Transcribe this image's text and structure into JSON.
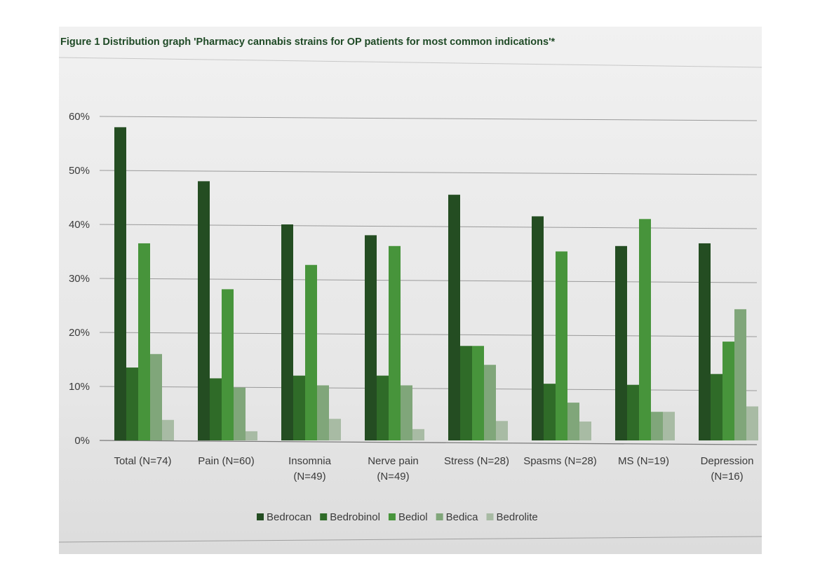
{
  "chart_data": {
    "type": "bar",
    "title": "Figure 1 Distribution graph 'Pharmacy cannabis strains for OP patients for most common indications'*",
    "xlabel": "",
    "ylabel": "",
    "ylim": [
      0,
      60
    ],
    "y_ticks": [
      "0%",
      "10%",
      "20%",
      "30%",
      "40%",
      "50%",
      "60%"
    ],
    "y_tick_values": [
      0,
      10,
      20,
      30,
      40,
      50,
      60
    ],
    "grid": true,
    "legend_position": "bottom",
    "categories": [
      [
        "Total (N=74)"
      ],
      [
        "Pain (N=60)"
      ],
      [
        "Insomnia",
        "(N=49)"
      ],
      [
        "Nerve pain",
        "(N=49)"
      ],
      [
        "Stress (N=28)"
      ],
      [
        "Spasms (N=28)"
      ],
      [
        "MS (N=19)"
      ],
      [
        "Depression",
        "(N=16)"
      ]
    ],
    "series": [
      {
        "name": "Bedrocan",
        "color": "#244d22",
        "values": [
          58,
          48,
          40,
          38,
          45.5,
          41.5,
          36,
          36.5
        ]
      },
      {
        "name": "Bedrobinol",
        "color": "#2f6b28",
        "values": [
          13.5,
          11.5,
          12,
          12,
          17.5,
          10.5,
          10.3,
          12.3
        ]
      },
      {
        "name": "Bediol",
        "color": "#47943b",
        "values": [
          36.5,
          28,
          32.5,
          36,
          17.5,
          35,
          41,
          18.3
        ]
      },
      {
        "name": "Bedica",
        "color": "#80a67a",
        "values": [
          16,
          9.8,
          10.2,
          10.2,
          14,
          7,
          5.3,
          24.3
        ]
      },
      {
        "name": "Bedrolite",
        "color": "#a8bba4",
        "values": [
          3.8,
          1.7,
          4,
          2.1,
          3.6,
          3.5,
          5.3,
          6.3
        ]
      }
    ]
  }
}
